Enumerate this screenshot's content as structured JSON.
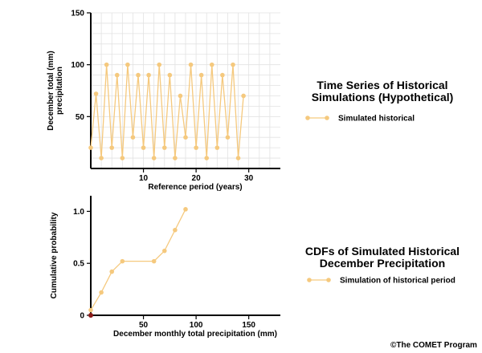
{
  "chart_data": [
    {
      "type": "line",
      "title": "Time Series of Historical Simulations (Hypothetical)",
      "title_lines": [
        "Time Series of Historical",
        "Simulations (Hypothetical)"
      ],
      "xlabel": "Reference period (years)",
      "ylabel": "December total (mm) precipitation",
      "ylabel_lines": [
        "December total (mm)",
        "precipitation"
      ],
      "xlim": [
        0,
        36
      ],
      "ylim": [
        0,
        150
      ],
      "xticks": [
        10,
        20,
        30
      ],
      "yticks": [
        50,
        100,
        150
      ],
      "grid": true,
      "legend_position": "right",
      "series": [
        {
          "name": "Simulated historical",
          "color": "#f5c97e",
          "x": [
            0,
            1,
            2,
            3,
            4,
            5,
            6,
            7,
            8,
            9,
            10,
            11,
            12,
            13,
            14,
            15,
            16,
            17,
            18,
            19,
            20,
            21,
            22,
            23,
            24,
            25,
            26,
            27,
            28,
            29
          ],
          "y": [
            20,
            72,
            10,
            100,
            20,
            90,
            10,
            100,
            30,
            90,
            20,
            90,
            10,
            100,
            20,
            90,
            10,
            70,
            30,
            100,
            20,
            90,
            10,
            100,
            20,
            90,
            30,
            100,
            10,
            70
          ]
        }
      ]
    },
    {
      "type": "line",
      "title": "CDFs of Simulated Historical December Precipitation",
      "title_lines": [
        "CDFs of Simulated Historical",
        "December Precipitation"
      ],
      "xlabel": "December monthly total precipitation (mm)",
      "ylabel": "Cumulative probability",
      "xlim": [
        0,
        180
      ],
      "ylim": [
        0,
        1.15
      ],
      "xticks": [
        50,
        100,
        150
      ],
      "yticks": [
        0,
        0.5,
        1.0
      ],
      "xtick_labels": [
        "50",
        "100",
        "150"
      ],
      "ytick_labels": [
        "0",
        "0.5",
        "1.0"
      ],
      "grid": false,
      "legend_position": "right",
      "series": [
        {
          "name": "Simulation of historical period",
          "color": "#f5c97e",
          "x": [
            0,
            10,
            20,
            30,
            60,
            70,
            80,
            90
          ],
          "y": [
            0.05,
            0.22,
            0.42,
            0.52,
            0.52,
            0.62,
            0.82,
            1.02
          ]
        }
      ],
      "origin_marker_color": "#8b1a1a"
    }
  ],
  "credit": "©The COMET Program"
}
